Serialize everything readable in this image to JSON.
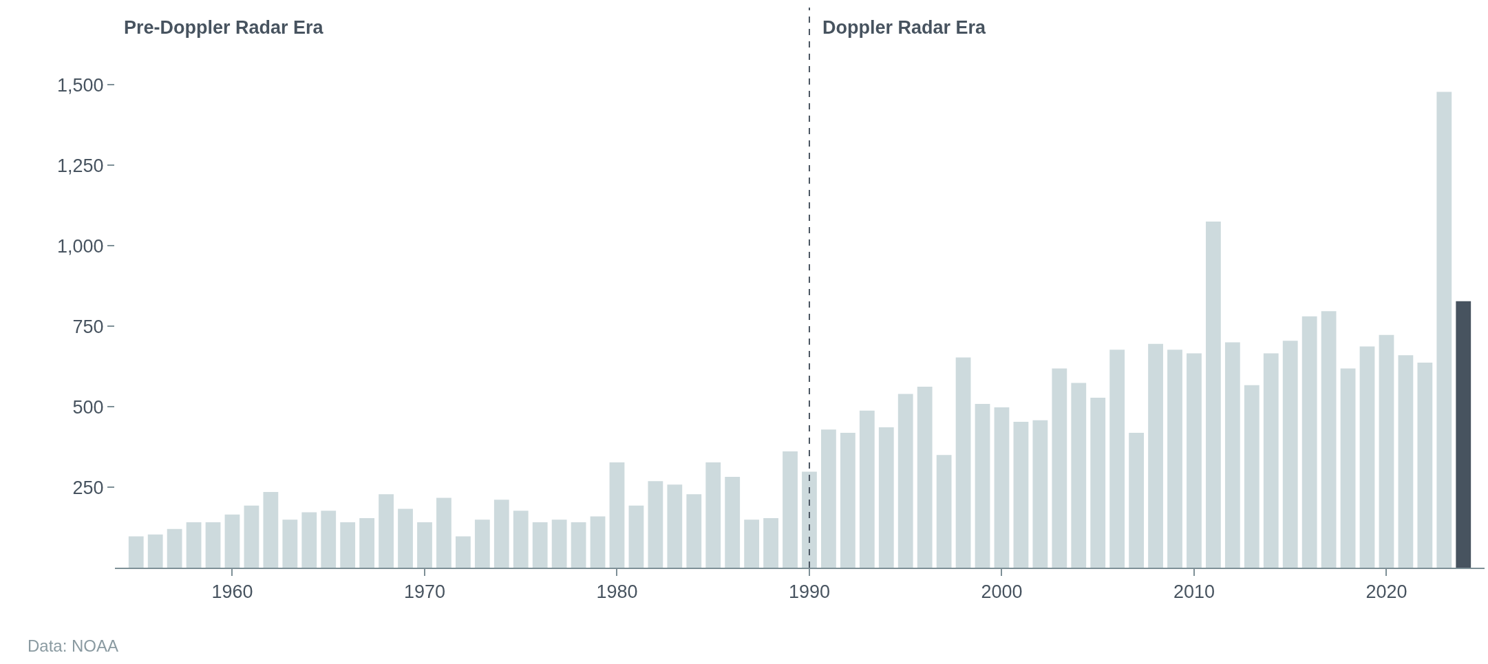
{
  "chart_data": {
    "type": "bar",
    "x": [
      1955,
      1956,
      1957,
      1958,
      1959,
      1960,
      1961,
      1962,
      1963,
      1964,
      1965,
      1966,
      1967,
      1968,
      1969,
      1970,
      1971,
      1972,
      1973,
      1974,
      1975,
      1976,
      1977,
      1978,
      1979,
      1980,
      1981,
      1982,
      1983,
      1984,
      1985,
      1986,
      1987,
      1988,
      1989,
      1990,
      1991,
      1992,
      1993,
      1994,
      1995,
      1996,
      1997,
      1998,
      1999,
      2000,
      2001,
      2002,
      2003,
      2004,
      2005,
      2006,
      2007,
      2008,
      2009,
      2010,
      2011,
      2012,
      2013,
      2014,
      2015,
      2016,
      2017,
      2018,
      2019,
      2020,
      2021,
      2022,
      2023,
      2024
    ],
    "values": [
      97,
      103,
      120,
      141,
      141,
      165,
      193,
      235,
      149,
      172,
      177,
      141,
      154,
      228,
      183,
      141,
      217,
      97,
      149,
      211,
      177,
      141,
      149,
      141,
      159,
      327,
      193,
      269,
      258,
      228,
      327,
      282,
      149,
      154,
      361,
      298,
      429,
      419,
      488,
      436,
      540,
      562,
      350,
      653,
      509,
      498,
      453,
      458,
      619,
      574,
      528,
      677,
      419,
      695,
      677,
      666,
      1075,
      700,
      567,
      666,
      705,
      781,
      797,
      619,
      687,
      723,
      660,
      637,
      1478,
      828
    ],
    "colors": [
      "#cddadd",
      "#cddadd",
      "#cddadd",
      "#cddadd",
      "#cddadd",
      "#cddadd",
      "#cddadd",
      "#cddadd",
      "#cddadd",
      "#cddadd",
      "#cddadd",
      "#cddadd",
      "#cddadd",
      "#cddadd",
      "#cddadd",
      "#cddadd",
      "#cddadd",
      "#cddadd",
      "#cddadd",
      "#cddadd",
      "#cddadd",
      "#cddadd",
      "#cddadd",
      "#cddadd",
      "#cddadd",
      "#cddadd",
      "#cddadd",
      "#cddadd",
      "#cddadd",
      "#cddadd",
      "#cddadd",
      "#cddadd",
      "#cddadd",
      "#cddadd",
      "#cddadd",
      "#cddadd",
      "#cddadd",
      "#cddadd",
      "#cddadd",
      "#cddadd",
      "#cddadd",
      "#cddadd",
      "#cddadd",
      "#cddadd",
      "#cddadd",
      "#cddadd",
      "#cddadd",
      "#cddadd",
      "#cddadd",
      "#cddadd",
      "#cddadd",
      "#cddadd",
      "#cddadd",
      "#cddadd",
      "#cddadd",
      "#cddadd",
      "#cddadd",
      "#cddadd",
      "#cddadd",
      "#cddadd",
      "#cddadd",
      "#cddadd",
      "#cddadd",
      "#cddadd",
      "#cddadd",
      "#cddadd",
      "#cddadd",
      "#cddadd",
      "#cddadd",
      "#47535f"
    ],
    "xlim": [
      1953.9,
      2025.1
    ],
    "xticks": [
      1960,
      1970,
      1980,
      1990,
      2000,
      2010,
      2020
    ],
    "ylim": [
      0,
      1740
    ],
    "yticks": [
      {
        "value": 250,
        "label": "250"
      },
      {
        "value": 500,
        "label": "500"
      },
      {
        "value": 750,
        "label": "750"
      },
      {
        "value": 1000,
        "label": "1,000"
      },
      {
        "value": 1250,
        "label": "1,250"
      },
      {
        "value": 1500,
        "label": "1,500"
      }
    ],
    "ref_lines": [
      {
        "axis": "x",
        "value": 1990,
        "color": "#4a5561",
        "line_style": "dashed"
      }
    ],
    "annotations": [
      "Pre-Doppler Radar Era",
      "Doppler Radar Era",
      "Data: NOAA"
    ]
  }
}
